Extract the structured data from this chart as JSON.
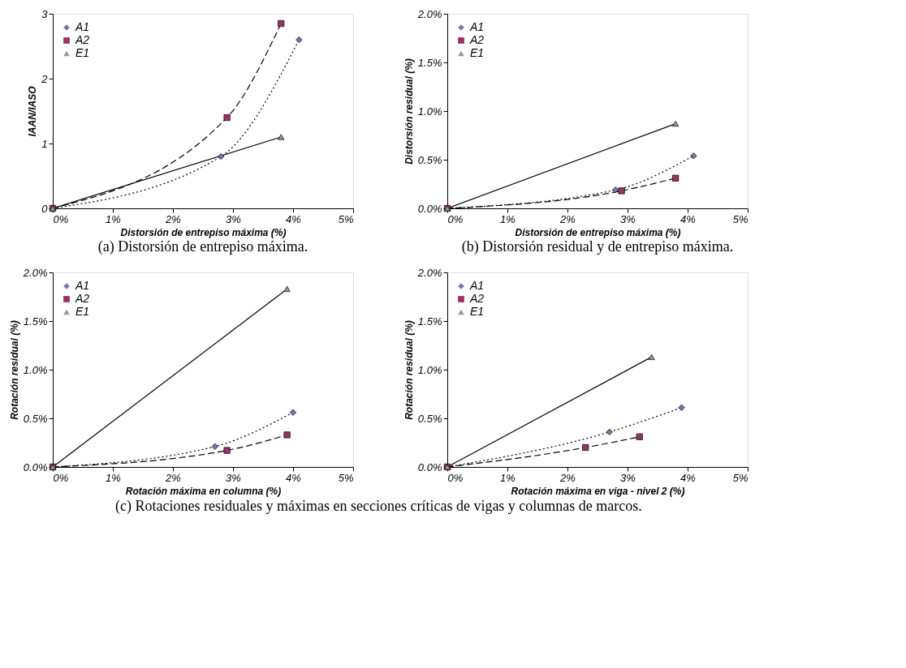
{
  "chart_data": [
    {
      "type": "line",
      "xlabel": "Distorsión de entrepiso máxima (%)",
      "ylabel": "IAAN/IASO",
      "annotations": [
        "(a) Distorsión de entrepiso máxima."
      ],
      "xlim": [
        0,
        5
      ],
      "xticks": [
        {
          "value": 0,
          "label": "0%"
        },
        {
          "value": 1,
          "label": "1%"
        },
        {
          "value": 2,
          "label": "2%"
        },
        {
          "value": 3,
          "label": "3%"
        },
        {
          "value": 4,
          "label": "4%"
        },
        {
          "value": 5,
          "label": "5%"
        }
      ],
      "ylim": [
        0,
        3
      ],
      "yticks": [
        0,
        1,
        2,
        3
      ],
      "grid": false,
      "legend": "top left",
      "series": [
        {
          "name": "A1",
          "color": "#7777aa",
          "marker": "diamond",
          "line_style": "dotted",
          "x": [
            0,
            2.8,
            4.1
          ],
          "values": [
            0,
            0.8,
            2.6
          ]
        },
        {
          "name": "A2",
          "color": "#993366",
          "marker": "square",
          "line_style": "dashed",
          "x": [
            0,
            2.9,
            3.8
          ],
          "values": [
            0,
            1.4,
            2.85
          ]
        },
        {
          "name": "E1",
          "color": "#999999",
          "marker": "triangle",
          "line_style": "solid",
          "x": [
            0,
            3.8
          ],
          "values": [
            0,
            1.1
          ]
        }
      ]
    },
    {
      "type": "line",
      "xlabel": "Distorsión de entrepiso máxima (%)",
      "ylabel": "Distorsión residual (%)",
      "annotations": [
        "(b) Distorsión residual y de entrepiso máxima."
      ],
      "xlim": [
        0,
        5
      ],
      "xticks": [
        {
          "value": 0,
          "label": "0%"
        },
        {
          "value": 1,
          "label": "1%"
        },
        {
          "value": 2,
          "label": "2%"
        },
        {
          "value": 3,
          "label": "3%"
        },
        {
          "value": 4,
          "label": "4%"
        },
        {
          "value": 5,
          "label": "5%"
        }
      ],
      "ylim": [
        0,
        2
      ],
      "yticks": [
        {
          "value": 0,
          "label": "0.0%"
        },
        {
          "value": 0.5,
          "label": "0.5%"
        },
        {
          "value": 1,
          "label": "1.0%"
        },
        {
          "value": 1.5,
          "label": "1.5%"
        },
        {
          "value": 2,
          "label": "2.0%"
        }
      ],
      "grid": false,
      "legend": "top left",
      "series": [
        {
          "name": "A1",
          "color": "#7777aa",
          "marker": "diamond",
          "line_style": "dotted",
          "x": [
            0,
            2.8,
            4.1
          ],
          "values": [
            0,
            0.19,
            0.54
          ]
        },
        {
          "name": "A2",
          "color": "#993366",
          "marker": "square",
          "line_style": "dashed",
          "x": [
            0,
            2.9,
            3.8
          ],
          "values": [
            0,
            0.18,
            0.31
          ]
        },
        {
          "name": "E1",
          "color": "#999999",
          "marker": "triangle",
          "line_style": "solid",
          "x": [
            0,
            3.8
          ],
          "values": [
            0,
            0.87
          ]
        }
      ]
    },
    {
      "type": "line",
      "xlabel": "Rotación máxima en columna (%)",
      "ylabel": "Rotación residual (%)",
      "annotations": [
        "(c) Rotaciones residuales y máximas en secciones críticas de vigas y columnas de marcos."
      ],
      "xlim": [
        0,
        5
      ],
      "xticks": [
        {
          "value": 0,
          "label": "0%"
        },
        {
          "value": 1,
          "label": "1%"
        },
        {
          "value": 2,
          "label": "2%"
        },
        {
          "value": 3,
          "label": "3%"
        },
        {
          "value": 4,
          "label": "4%"
        },
        {
          "value": 5,
          "label": "5%"
        }
      ],
      "ylim": [
        0,
        2
      ],
      "yticks": [
        {
          "value": 0,
          "label": "0.0%"
        },
        {
          "value": 0.5,
          "label": "0.5%"
        },
        {
          "value": 1,
          "label": "1.0%"
        },
        {
          "value": 1.5,
          "label": "1.5%"
        },
        {
          "value": 2,
          "label": "2.0%"
        }
      ],
      "grid": false,
      "legend": "top left",
      "series": [
        {
          "name": "A1",
          "color": "#7777aa",
          "marker": "diamond",
          "line_style": "dotted",
          "x": [
            0,
            2.7,
            4.0
          ],
          "values": [
            0,
            0.21,
            0.56
          ]
        },
        {
          "name": "A2",
          "color": "#993366",
          "marker": "square",
          "line_style": "dashed",
          "x": [
            0,
            2.9,
            3.9
          ],
          "values": [
            0,
            0.17,
            0.33
          ]
        },
        {
          "name": "E1",
          "color": "#999999",
          "marker": "triangle",
          "line_style": "solid",
          "x": [
            0,
            3.9
          ],
          "values": [
            0,
            1.83
          ]
        }
      ]
    },
    {
      "type": "line",
      "xlabel": "Rotación máxima en viga - nivel 2 (%)",
      "ylabel": "Rotación residual (%)",
      "xlim": [
        0,
        5
      ],
      "xticks": [
        {
          "value": 0,
          "label": "0%"
        },
        {
          "value": 1,
          "label": "1%"
        },
        {
          "value": 2,
          "label": "2%"
        },
        {
          "value": 3,
          "label": "3%"
        },
        {
          "value": 4,
          "label": "4%"
        },
        {
          "value": 5,
          "label": "5%"
        }
      ],
      "ylim": [
        0,
        2
      ],
      "yticks": [
        {
          "value": 0,
          "label": "0.0%"
        },
        {
          "value": 0.5,
          "label": "0.5%"
        },
        {
          "value": 1,
          "label": "1.0%"
        },
        {
          "value": 1.5,
          "label": "1.5%"
        },
        {
          "value": 2,
          "label": "2.0%"
        }
      ],
      "grid": false,
      "legend": "top left",
      "series": [
        {
          "name": "A1",
          "color": "#7777aa",
          "marker": "diamond",
          "line_style": "dotted",
          "x": [
            0,
            2.7,
            3.9
          ],
          "values": [
            0,
            0.36,
            0.61
          ]
        },
        {
          "name": "A2",
          "color": "#993366",
          "marker": "square",
          "line_style": "dashed",
          "x": [
            0,
            2.3,
            3.2
          ],
          "values": [
            0,
            0.2,
            0.31
          ]
        },
        {
          "name": "E1",
          "color": "#999999",
          "marker": "triangle",
          "line_style": "solid",
          "x": [
            0,
            3.4
          ],
          "values": [
            0,
            1.13
          ]
        }
      ]
    }
  ]
}
